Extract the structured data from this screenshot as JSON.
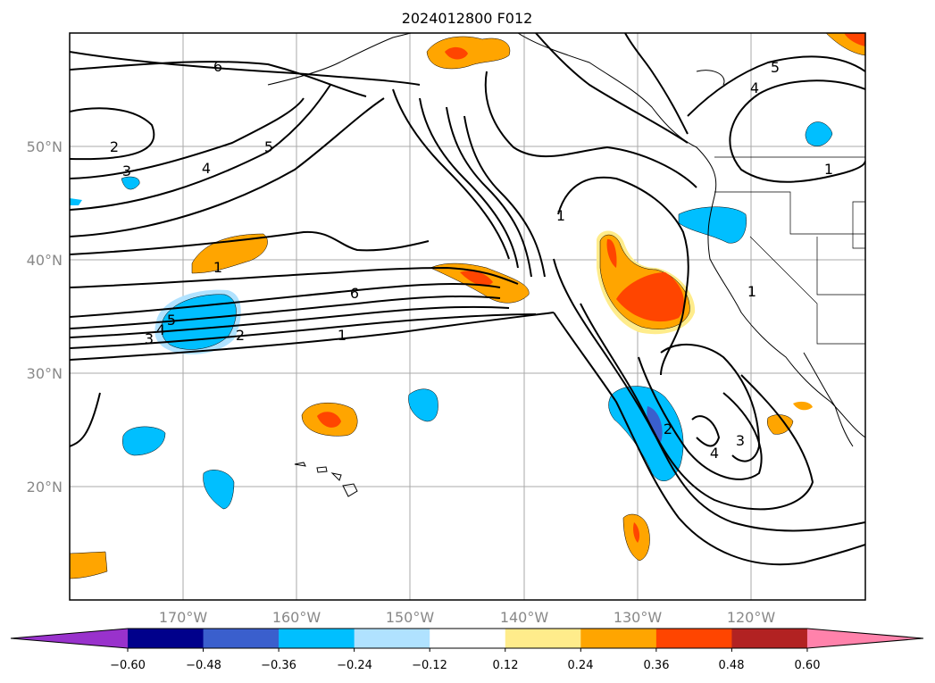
{
  "title": "2024012800 F012",
  "map": {
    "lon_range": [
      -180,
      -110
    ],
    "lat_range": [
      10,
      60
    ],
    "grid_lon": [
      -170,
      -160,
      -150,
      -140,
      -130,
      -120
    ],
    "grid_lat": [
      20,
      30,
      40,
      50
    ],
    "lon_labels": [
      "170°W",
      "160°W",
      "150°W",
      "140°W",
      "130°W",
      "120°W"
    ],
    "lat_labels": [
      "20°N",
      "30°N",
      "40°N",
      "50°N"
    ],
    "grid": true
  },
  "colorbar": {
    "ticks": [
      "−0.60",
      "−0.48",
      "−0.36",
      "−0.24",
      "−0.12",
      "0.12",
      "0.24",
      "0.36",
      "0.48",
      "0.60"
    ],
    "colors": [
      "#9932cc",
      "#00008b",
      "#3a5fcd",
      "#00bfff",
      "#b0e2ff",
      "#ffffff",
      "#ffec8b",
      "#ffa500",
      "#ff4500",
      "#b22222",
      "#ff82ab"
    ]
  },
  "contour_labels": [
    "6",
    "5",
    "4",
    "3",
    "2",
    "1",
    "6",
    "5",
    "4",
    "3",
    "2",
    "1",
    "1",
    "1",
    "1",
    "2",
    "3",
    "4",
    "5",
    "4",
    "1"
  ]
}
